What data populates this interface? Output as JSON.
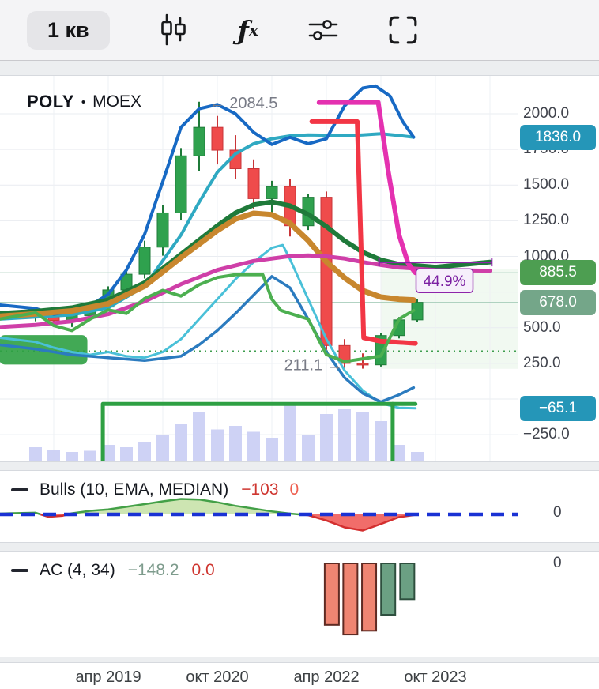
{
  "toolbar": {
    "timeframe_label": "1 кв",
    "fx_icon": {
      "f": "ƒ",
      "x": "x"
    }
  },
  "main_chart": {
    "symbol": "POLY",
    "separator": "•",
    "exchange": "MOEX"
  },
  "axis": {
    "ticks": [
      {
        "label": "2000.0",
        "price": 2000
      },
      {
        "label": "1750.0",
        "price": 1750
      },
      {
        "label": "1500.0",
        "price": 1500
      },
      {
        "label": "1250.0",
        "price": 1250
      },
      {
        "label": "1000.0",
        "price": 1000
      },
      {
        "label": "500.0",
        "price": 500
      },
      {
        "label": "250.0",
        "price": 250
      },
      {
        "label": "−250.0",
        "price": -250
      }
    ],
    "grid_prices": [
      2000,
      1750,
      1500,
      1250,
      1000,
      750,
      500,
      250,
      0,
      -250
    ],
    "badges": [
      {
        "label": "1836.0",
        "price": 1836,
        "color": "#2596b8"
      },
      {
        "label": "885.5",
        "price": 885.5,
        "color": "#4d9e51"
      },
      {
        "label": "678.0",
        "price": 678,
        "color": "#74a689"
      },
      {
        "label": "−65.1",
        "price": -65.1,
        "color": "#2596b8"
      }
    ]
  },
  "chart_data": {
    "type": "candlestick",
    "symbol": "POLY • MOEX",
    "timeframe": "1 кв",
    "y_range": [
      -437,
      2266
    ],
    "x_labels": [
      {
        "text": "апр 2019",
        "i": 4
      },
      {
        "text": "окт 2020",
        "i": 10
      },
      {
        "text": "апр 2022",
        "i": 16
      },
      {
        "text": "окт 2023",
        "i": 22
      }
    ],
    "candles": [
      [
        0,
        575,
        640,
        545,
        605
      ],
      [
        1,
        605,
        635,
        520,
        550
      ],
      [
        2,
        550,
        605,
        505,
        585
      ],
      [
        3,
        585,
        665,
        555,
        645
      ],
      [
        4,
        645,
        790,
        615,
        765
      ],
      [
        5,
        765,
        905,
        700,
        875
      ],
      [
        6,
        875,
        1110,
        845,
        1065
      ],
      [
        7,
        1065,
        1360,
        1005,
        1305
      ],
      [
        8,
        1305,
        1760,
        1255,
        1705
      ],
      [
        9,
        1705,
        2084.5,
        1600,
        1905
      ],
      [
        10,
        1905,
        1985,
        1645,
        1745
      ],
      [
        11,
        1745,
        1850,
        1545,
        1615
      ],
      [
        12,
        1615,
        1680,
        1330,
        1405
      ],
      [
        13,
        1405,
        1530,
        1310,
        1490
      ],
      [
        14,
        1490,
        1545,
        1140,
        1215
      ],
      [
        15,
        1215,
        1440,
        1185,
        1415
      ],
      [
        16,
        1415,
        1455,
        345,
        375
      ],
      [
        17,
        375,
        420,
        211.1,
        250
      ],
      [
        18,
        250,
        320,
        213,
        240
      ],
      [
        19,
        240,
        460,
        228,
        445
      ],
      [
        20,
        445,
        575,
        425,
        555
      ],
      [
        21,
        555,
        700,
        540,
        678
      ]
    ],
    "volumes": [
      12,
      10,
      8,
      9,
      14,
      12,
      16,
      22,
      32,
      42,
      27,
      30,
      25,
      20,
      48,
      22,
      40,
      44,
      42,
      34,
      14,
      8
    ],
    "lines": [
      {
        "name": "teal-slow-ma",
        "color": "#2fa9c2",
        "width": 4,
        "points": [
          [
            -2,
            560
          ],
          [
            0,
            575
          ],
          [
            2,
            590
          ],
          [
            4,
            640
          ],
          [
            6,
            790
          ],
          [
            8,
            1150
          ],
          [
            9,
            1380
          ],
          [
            10,
            1590
          ],
          [
            11,
            1720
          ],
          [
            12,
            1790
          ],
          [
            13,
            1825
          ],
          [
            14,
            1845
          ],
          [
            15,
            1852
          ],
          [
            16,
            1850
          ],
          [
            17,
            1845
          ],
          [
            18,
            1852
          ],
          [
            19,
            1860
          ],
          [
            20,
            1848
          ],
          [
            20.8,
            1836
          ]
        ]
      },
      {
        "name": "cyan-fast-ma",
        "color": "#49c0d8",
        "width": 3,
        "points": [
          [
            -2,
            430
          ],
          [
            0,
            400
          ],
          [
            1,
            360
          ],
          [
            2,
            330
          ],
          [
            3,
            310
          ],
          [
            4,
            330
          ],
          [
            5,
            300
          ],
          [
            6,
            290
          ],
          [
            7,
            330
          ],
          [
            8,
            420
          ],
          [
            9,
            560
          ],
          [
            10,
            700
          ],
          [
            11,
            840
          ],
          [
            12,
            960
          ],
          [
            13,
            1060
          ],
          [
            13.6,
            1080
          ],
          [
            14,
            980
          ],
          [
            15,
            700
          ],
          [
            16,
            420
          ],
          [
            17,
            200
          ],
          [
            18,
            60
          ],
          [
            19,
            -30
          ],
          [
            20,
            -62
          ],
          [
            20.9,
            -65.1
          ]
        ]
      },
      {
        "name": "blue-ma",
        "color": "#1769c4",
        "width": 4,
        "points": [
          [
            -2,
            660
          ],
          [
            0,
            635
          ],
          [
            1,
            595
          ],
          [
            2,
            615
          ],
          [
            3,
            655
          ],
          [
            4,
            735
          ],
          [
            5,
            905
          ],
          [
            6,
            1155
          ],
          [
            7,
            1525
          ],
          [
            8,
            1905
          ],
          [
            9,
            2035
          ],
          [
            10,
            2065
          ],
          [
            11,
            2000
          ],
          [
            12,
            1870
          ],
          [
            13,
            1785
          ],
          [
            14,
            1835
          ],
          [
            15,
            1790
          ],
          [
            16,
            1825
          ],
          [
            17,
            2055
          ],
          [
            18,
            2180
          ],
          [
            18.7,
            2195
          ],
          [
            19.5,
            2125
          ],
          [
            20.2,
            1945
          ],
          [
            20.8,
            1836
          ]
        ]
      },
      {
        "name": "blue-slow-ma",
        "color": "#2b7bbf",
        "width": 3.5,
        "points": [
          [
            -2,
            380
          ],
          [
            0,
            350
          ],
          [
            2,
            310
          ],
          [
            4,
            290
          ],
          [
            6,
            270
          ],
          [
            8,
            300
          ],
          [
            9,
            380
          ],
          [
            10,
            480
          ],
          [
            11,
            600
          ],
          [
            12,
            730
          ],
          [
            13,
            860
          ],
          [
            14,
            780
          ],
          [
            15,
            560
          ],
          [
            16,
            330
          ],
          [
            17,
            150
          ],
          [
            18,
            40
          ],
          [
            19,
            -20
          ],
          [
            20,
            30
          ],
          [
            20.8,
            80
          ]
        ]
      },
      {
        "name": "darkgreen-ma",
        "color": "#1f7a3a",
        "width": 6,
        "points": [
          [
            -2,
            600
          ],
          [
            0,
            615
          ],
          [
            2,
            640
          ],
          [
            4,
            695
          ],
          [
            6,
            815
          ],
          [
            8,
            1015
          ],
          [
            10,
            1215
          ],
          [
            11,
            1305
          ],
          [
            12,
            1362
          ],
          [
            13,
            1382
          ],
          [
            14,
            1355
          ],
          [
            15,
            1295
          ],
          [
            16,
            1210
          ],
          [
            17,
            1110
          ],
          [
            18,
            1030
          ],
          [
            19,
            975
          ],
          [
            20,
            945
          ],
          [
            22,
            925
          ],
          [
            25,
            960
          ]
        ]
      },
      {
        "name": "orange-ma",
        "color": "#c8872e",
        "width": 7,
        "points": [
          [
            -2,
            580
          ],
          [
            0,
            597
          ],
          [
            2,
            618
          ],
          [
            4,
            668
          ],
          [
            6,
            792
          ],
          [
            8,
            992
          ],
          [
            10,
            1182
          ],
          [
            11,
            1262
          ],
          [
            12,
            1302
          ],
          [
            13,
            1292
          ],
          [
            14,
            1232
          ],
          [
            15,
            1112
          ],
          [
            16,
            962
          ],
          [
            17,
            850
          ],
          [
            18,
            760
          ],
          [
            19,
            715
          ],
          [
            20,
            700
          ],
          [
            20.8,
            695
          ]
        ]
      },
      {
        "name": "magenta-ma",
        "color": "#cf3fa8",
        "width": 5,
        "points": [
          [
            -2,
            505
          ],
          [
            0,
            520
          ],
          [
            2,
            545
          ],
          [
            4,
            595
          ],
          [
            6,
            685
          ],
          [
            8,
            805
          ],
          [
            10,
            905
          ],
          [
            12,
            968
          ],
          [
            14,
            1002
          ],
          [
            15,
            1007
          ],
          [
            16,
            1000
          ],
          [
            17,
            985
          ],
          [
            18,
            960
          ],
          [
            19,
            940
          ],
          [
            20,
            922
          ],
          [
            22,
            905
          ],
          [
            25,
            900
          ]
        ]
      },
      {
        "name": "pink-step",
        "color": "#e431b0",
        "width": 6,
        "points": [
          [
            15.6,
            2080
          ],
          [
            18.85,
            2080
          ],
          [
            19.4,
            1600
          ],
          [
            20,
            1150
          ],
          [
            20.5,
            950
          ],
          [
            20.9,
            885
          ]
        ]
      },
      {
        "name": "red-step",
        "color": "#f23645",
        "width": 6,
        "points": [
          [
            15.2,
            1945
          ],
          [
            17.7,
            1945
          ],
          [
            17.9,
            1100
          ],
          [
            18.05,
            430
          ],
          [
            19,
            405
          ],
          [
            20,
            398
          ],
          [
            20.9,
            390
          ]
        ]
      },
      {
        "name": "green-step",
        "color": "#2ea043",
        "width": 5,
        "points": [
          [
            3.7,
            -430
          ],
          [
            3.7,
            -35
          ],
          [
            20.9,
            -35
          ]
        ]
      },
      {
        "name": "green-vertical",
        "color": "#2ea043",
        "width": 5,
        "points": [
          [
            19.65,
            -35
          ],
          [
            19.65,
            -430
          ]
        ]
      },
      {
        "name": "green-zigzag",
        "color": "#4caf50",
        "width": 4,
        "points": [
          [
            -2,
            560
          ],
          [
            0,
            605
          ],
          [
            1,
            515
          ],
          [
            2,
            480
          ],
          [
            3,
            560
          ],
          [
            4,
            625
          ],
          [
            5,
            600
          ],
          [
            6,
            705
          ],
          [
            7,
            762
          ],
          [
            8,
            722
          ],
          [
            9,
            802
          ],
          [
            10,
            852
          ],
          [
            11,
            872
          ],
          [
            12.5,
            872
          ],
          [
            13,
            700
          ],
          [
            13.5,
            622
          ],
          [
            14,
            600
          ],
          [
            15,
            560
          ],
          [
            16,
            312
          ],
          [
            17,
            262
          ],
          [
            18,
            282
          ],
          [
            19,
            302
          ],
          [
            20,
            560
          ],
          [
            20.8,
            622
          ]
        ]
      }
    ],
    "annotations": {
      "high": {
        "text": "← 2084.5",
        "i": 9.55,
        "price": 2078
      },
      "low": {
        "text": "211.1 →",
        "i": 16.9,
        "price": 240
      },
      "percent": {
        "text": "44.9%",
        "i": 22.5,
        "price": 830
      },
      "measure": {
        "price": 958,
        "i1": 18.9,
        "i2": 25.1
      },
      "dotted_level": 335,
      "soft_levels": [
        885.5,
        678
      ],
      "green_box": {
        "i1": -2,
        "i2": 2.85,
        "p1": 448,
        "p2": 242
      },
      "shade": {
        "i1": 19.0,
        "i2": 26.6,
        "p1": 908,
        "p2": 212
      }
    }
  },
  "bulls": {
    "title": "Bulls (10, EMA, MEDIAN)",
    "value1": "−103",
    "value2": "0",
    "axis_zero": "0",
    "zero_color": "#1a32d4",
    "series": [
      [
        -2,
        5
      ],
      [
        -1.5,
        8
      ],
      [
        0,
        12
      ],
      [
        0.7,
        -18
      ],
      [
        1.5,
        -10
      ],
      [
        2,
        8
      ],
      [
        3,
        26
      ],
      [
        4,
        36
      ],
      [
        5,
        55
      ],
      [
        6,
        75
      ],
      [
        7,
        95
      ],
      [
        8,
        112
      ],
      [
        9,
        108
      ],
      [
        10,
        88
      ],
      [
        11,
        62
      ],
      [
        12,
        42
      ],
      [
        13,
        22
      ],
      [
        14,
        6
      ],
      [
        15,
        -6
      ],
      [
        16,
        -45
      ],
      [
        17,
        -95
      ],
      [
        18,
        -118
      ],
      [
        19,
        -70
      ],
      [
        20,
        -20
      ],
      [
        21,
        -2
      ]
    ]
  },
  "ac": {
    "title": "AC (4, 34)",
    "value1": "−148.2",
    "value2": "0.0",
    "axis_zero": "0",
    "bars": [
      {
        "i": 16.3,
        "v": -146,
        "up": false
      },
      {
        "i": 17.32,
        "v": -169,
        "up": false
      },
      {
        "i": 18.35,
        "v": -160,
        "up": false
      },
      {
        "i": 19.4,
        "v": -122,
        "up": true
      },
      {
        "i": 20.45,
        "v": -85,
        "up": true
      }
    ]
  }
}
